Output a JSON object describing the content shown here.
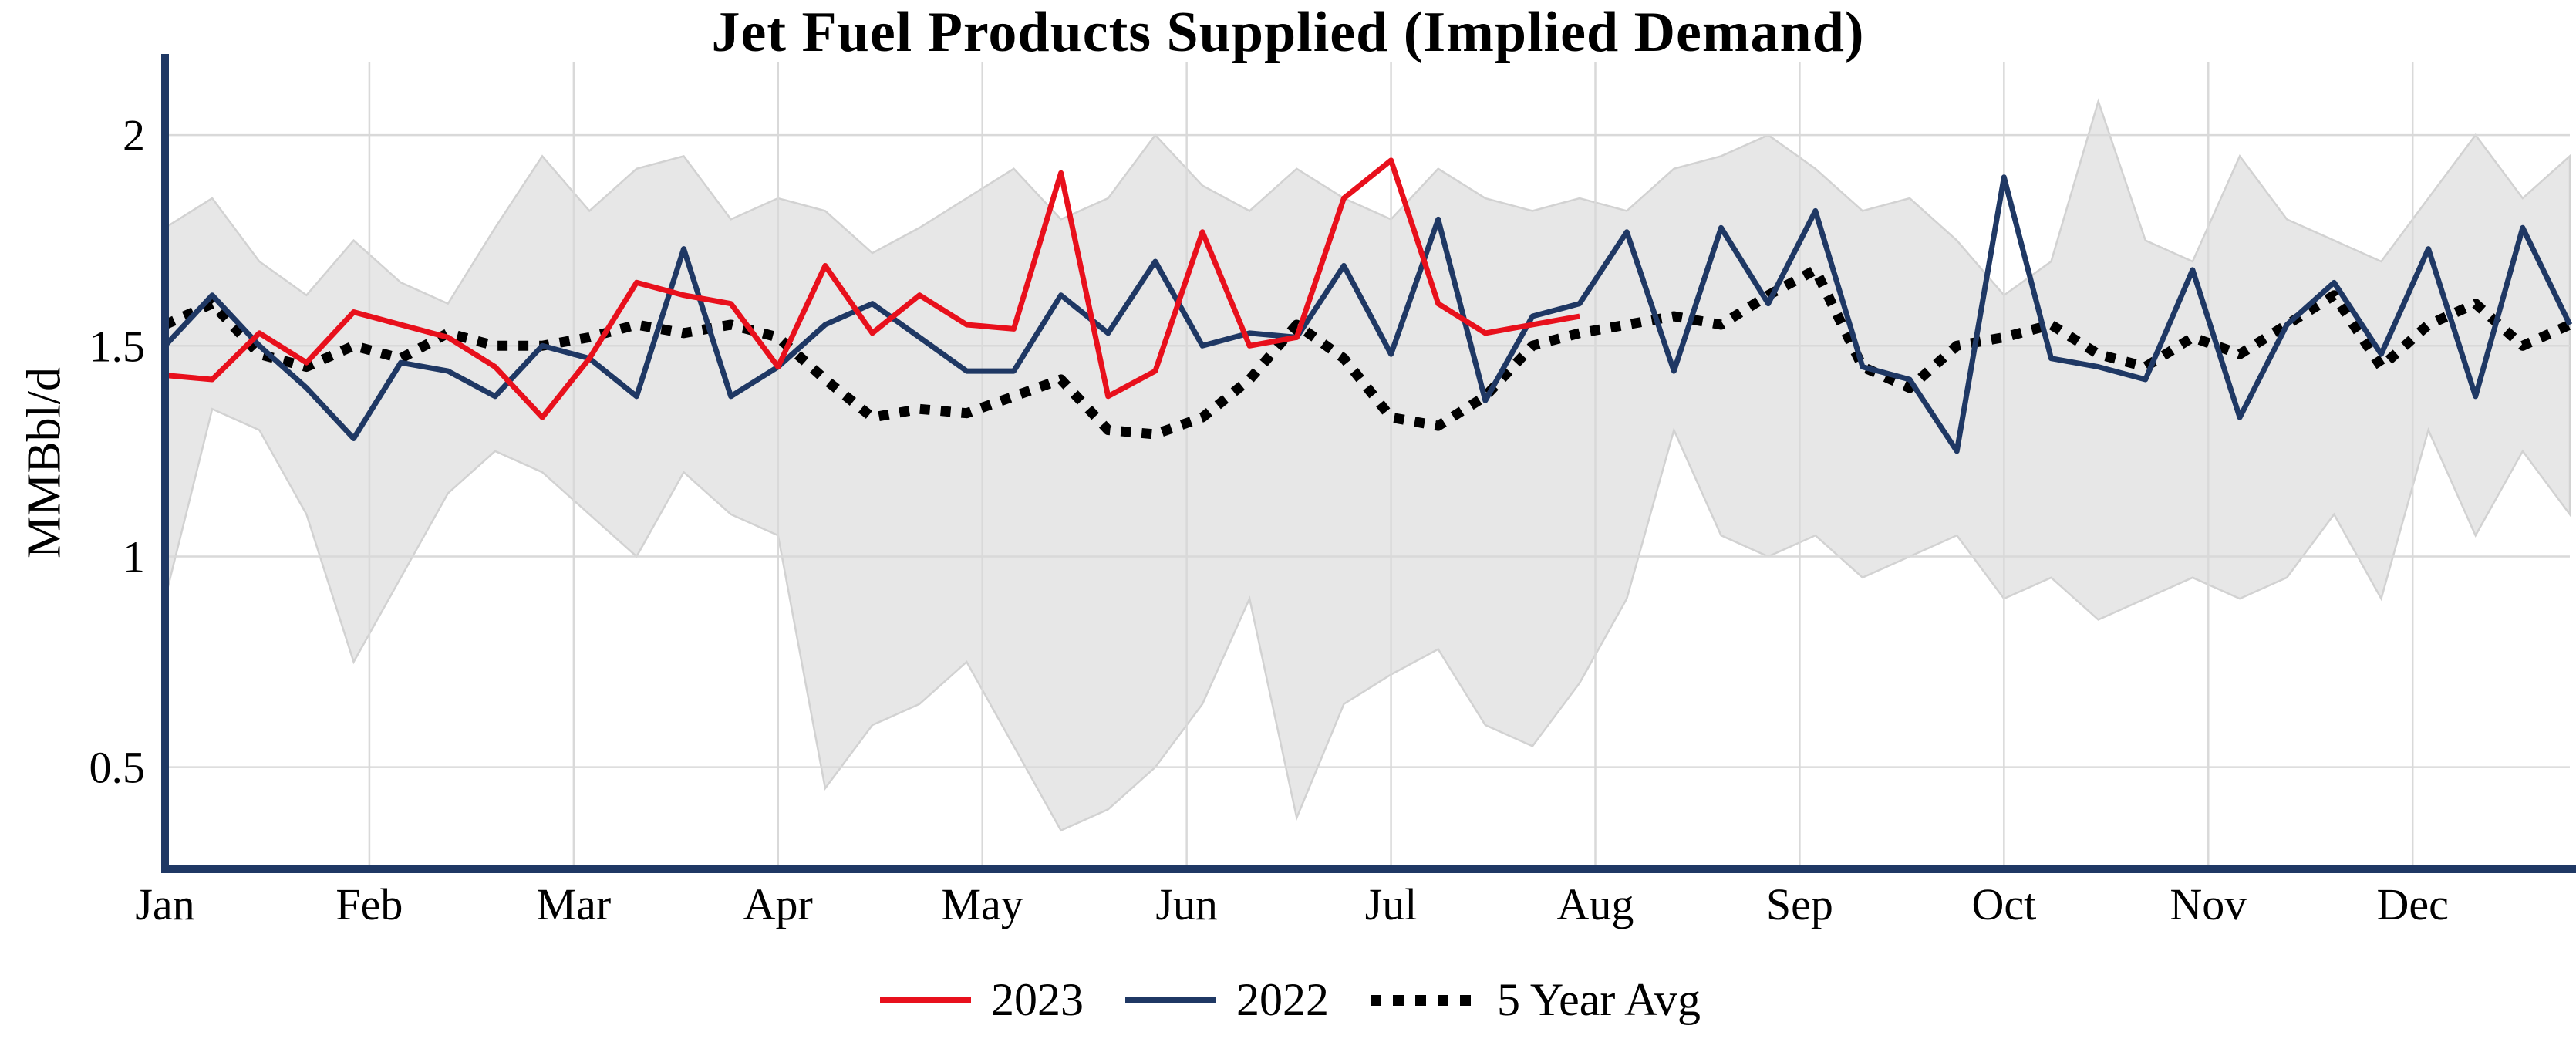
{
  "chart_data": {
    "type": "line",
    "title": "Jet Fuel Products Supplied (Implied Demand)",
    "ylabel": "MMBbl/d",
    "x_ticks": [
      "Jan",
      "Feb",
      "Mar",
      "Apr",
      "May",
      "Jun",
      "Jul",
      "Aug",
      "Sep",
      "Oct",
      "Nov",
      "Dec"
    ],
    "y_ticks": [
      0.5,
      1,
      1.5,
      2
    ],
    "ylim": [
      0.27,
      2.17
    ],
    "x_unit": "weekly",
    "grid": true,
    "legend_position": "bottom",
    "series": [
      {
        "name": "2023",
        "color": "#e8101c",
        "style": "solid",
        "values": [
          1.43,
          1.42,
          1.53,
          1.46,
          1.58,
          1.55,
          1.52,
          1.45,
          1.33,
          1.47,
          1.65,
          1.62,
          1.6,
          1.45,
          1.69,
          1.53,
          1.62,
          1.55,
          1.54,
          1.91,
          1.38,
          1.44,
          1.77,
          1.5,
          1.52,
          1.85,
          1.94,
          1.6,
          1.53,
          1.55,
          1.57
        ]
      },
      {
        "name": "2022",
        "color": "#1f3864",
        "style": "solid",
        "values": [
          1.5,
          1.62,
          1.5,
          1.4,
          1.28,
          1.46,
          1.44,
          1.38,
          1.5,
          1.47,
          1.38,
          1.73,
          1.38,
          1.45,
          1.55,
          1.6,
          1.52,
          1.44,
          1.44,
          1.62,
          1.53,
          1.7,
          1.5,
          1.53,
          1.52,
          1.69,
          1.48,
          1.8,
          1.37,
          1.57,
          1.6,
          1.77,
          1.44,
          1.78,
          1.6,
          1.82,
          1.45,
          1.42,
          1.25,
          1.9,
          1.47,
          1.45,
          1.42,
          1.68,
          1.33,
          1.55,
          1.65,
          1.48,
          1.73,
          1.38,
          1.78,
          1.55
        ]
      },
      {
        "name": "5 Year Avg",
        "color": "#000000",
        "style": "dotted",
        "values": [
          1.55,
          1.6,
          1.48,
          1.45,
          1.5,
          1.47,
          1.53,
          1.5,
          1.5,
          1.52,
          1.55,
          1.53,
          1.55,
          1.52,
          1.42,
          1.33,
          1.35,
          1.34,
          1.38,
          1.42,
          1.3,
          1.29,
          1.33,
          1.42,
          1.55,
          1.47,
          1.33,
          1.31,
          1.38,
          1.5,
          1.53,
          1.55,
          1.57,
          1.55,
          1.62,
          1.68,
          1.45,
          1.4,
          1.5,
          1.52,
          1.55,
          1.48,
          1.45,
          1.52,
          1.48,
          1.55,
          1.62,
          1.45,
          1.55,
          1.6,
          1.5,
          1.55
        ]
      }
    ],
    "band": {
      "name": "5-year range",
      "color": "#e7e7e7",
      "edge_color": "#d2d2d2",
      "upper": [
        1.78,
        1.85,
        1.7,
        1.62,
        1.75,
        1.65,
        1.6,
        1.78,
        1.95,
        1.82,
        1.92,
        1.95,
        1.8,
        1.85,
        1.82,
        1.72,
        1.78,
        1.85,
        1.92,
        1.8,
        1.85,
        2.0,
        1.88,
        1.82,
        1.92,
        1.85,
        1.8,
        1.92,
        1.85,
        1.82,
        1.85,
        1.82,
        1.92,
        1.95,
        2.0,
        1.92,
        1.82,
        1.85,
        1.75,
        1.62,
        1.7,
        2.08,
        1.75,
        1.7,
        1.95,
        1.8,
        1.75,
        1.7,
        1.85,
        2.0,
        1.85,
        1.95
      ],
      "lower": [
        0.9,
        1.35,
        1.3,
        1.1,
        0.75,
        0.95,
        1.15,
        1.25,
        1.2,
        1.1,
        1.0,
        1.2,
        1.1,
        1.05,
        0.45,
        0.6,
        0.65,
        0.75,
        0.55,
        0.35,
        0.4,
        0.5,
        0.65,
        0.9,
        0.38,
        0.65,
        0.72,
        0.78,
        0.6,
        0.55,
        0.7,
        0.9,
        1.3,
        1.05,
        1.0,
        1.05,
        0.95,
        1.0,
        1.05,
        0.9,
        0.95,
        0.85,
        0.9,
        0.95,
        0.9,
        0.95,
        1.1,
        0.9,
        1.3,
        1.05,
        1.25,
        1.1
      ]
    }
  },
  "colors": {
    "axis": "#1f3864",
    "grid": "#d9d9d9"
  }
}
